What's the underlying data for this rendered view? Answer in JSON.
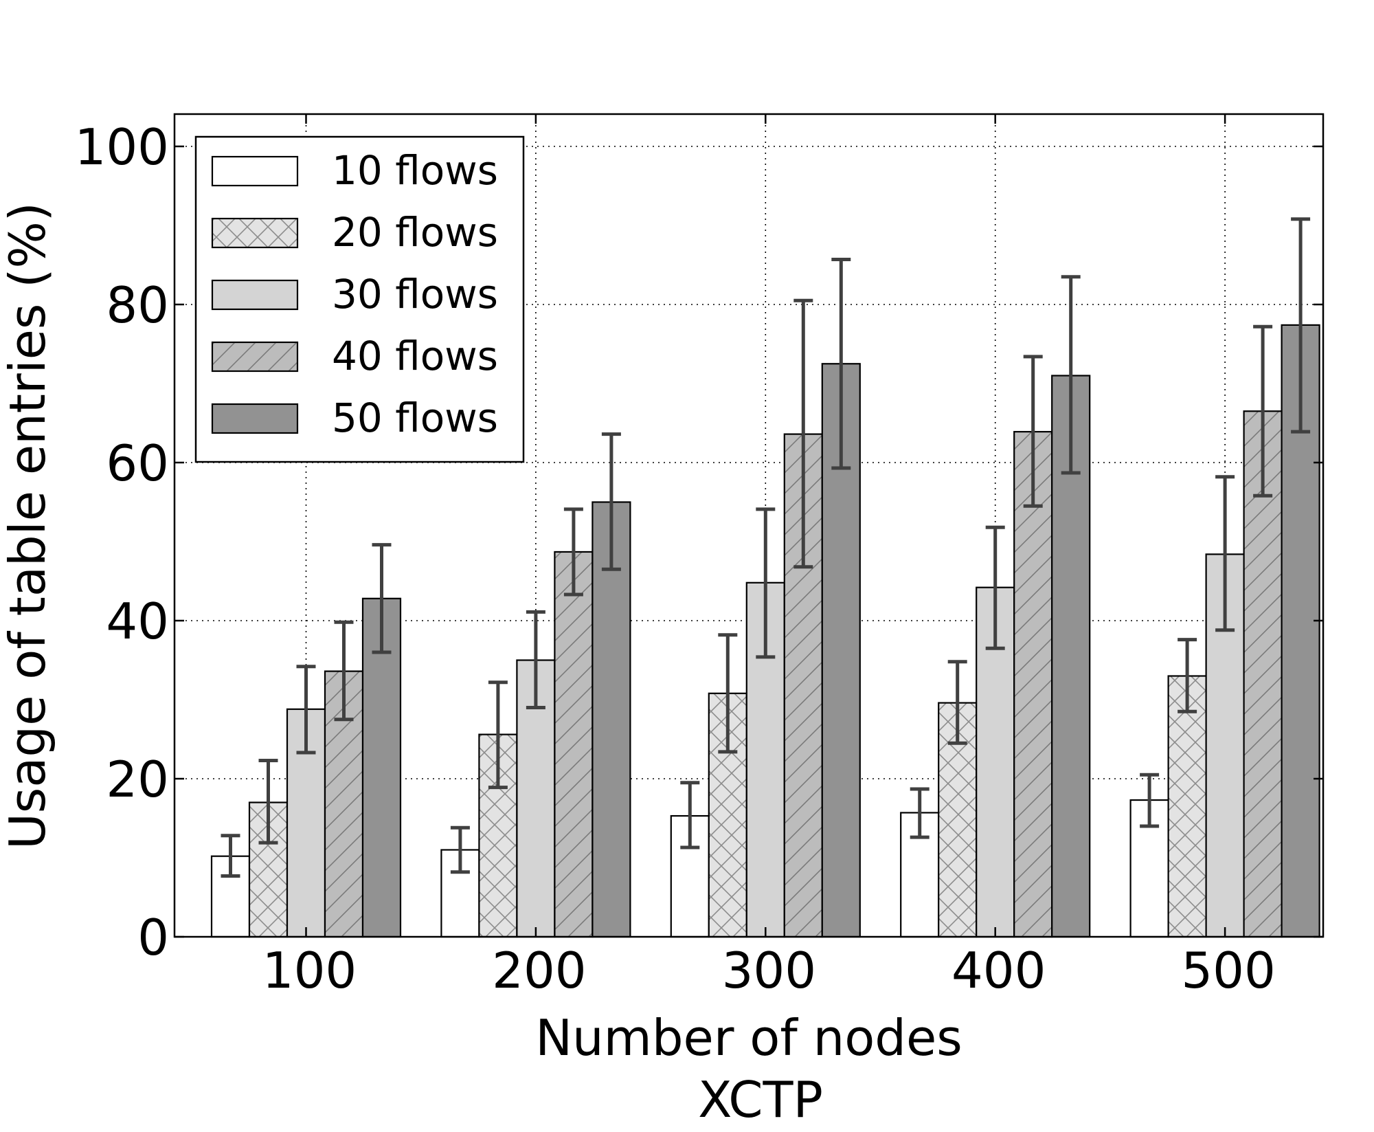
{
  "chart_data": {
    "type": "bar",
    "title": "",
    "subtitle": "XCTP",
    "xlabel": "Number of nodes",
    "ylabel": "Usage of table entries (%)",
    "ylim": [
      0,
      100
    ],
    "yticks": [
      "0",
      "20",
      "40",
      "60",
      "80",
      "100"
    ],
    "grid": true,
    "legend_position": "top-left",
    "categories": [
      "100",
      "200",
      "300",
      "400",
      "500"
    ],
    "series": [
      {
        "name": "10 flows",
        "fill": "#ffffff",
        "hatch": "none",
        "values": [
          10.2,
          11.0,
          15.3,
          15.7,
          17.3
        ],
        "err_low": [
          7.7,
          8.2,
          11.3,
          12.6,
          14.0
        ],
        "err_high": [
          12.8,
          13.8,
          19.5,
          18.7,
          20.5
        ]
      },
      {
        "name": "20 flows",
        "fill": "#e3e3e3",
        "hatch": "cross",
        "values": [
          17.0,
          25.6,
          30.8,
          29.6,
          33.0
        ],
        "err_low": [
          11.9,
          18.9,
          23.4,
          24.5,
          28.5
        ],
        "err_high": [
          22.3,
          32.2,
          38.2,
          34.8,
          37.6
        ]
      },
      {
        "name": "30 flows",
        "fill": "#d4d4d4",
        "hatch": "none",
        "values": [
          28.8,
          35.0,
          44.8,
          44.2,
          48.4
        ],
        "err_low": [
          23.3,
          29.0,
          35.4,
          36.5,
          38.8
        ],
        "err_high": [
          34.2,
          41.1,
          54.1,
          51.8,
          58.2
        ]
      },
      {
        "name": "40 flows",
        "fill": "#bcbcbc",
        "hatch": "diag",
        "values": [
          33.6,
          48.7,
          63.6,
          63.9,
          66.5
        ],
        "err_low": [
          27.5,
          43.3,
          46.8,
          54.5,
          55.8
        ],
        "err_high": [
          39.8,
          54.1,
          80.5,
          73.4,
          77.2
        ]
      },
      {
        "name": "50 flows",
        "fill": "#929292",
        "hatch": "none",
        "values": [
          42.8,
          55.0,
          72.5,
          71.0,
          77.4
        ],
        "err_low": [
          36.0,
          46.5,
          59.3,
          58.7,
          63.9
        ],
        "err_high": [
          49.6,
          63.6,
          85.7,
          83.5,
          90.8
        ]
      }
    ]
  }
}
